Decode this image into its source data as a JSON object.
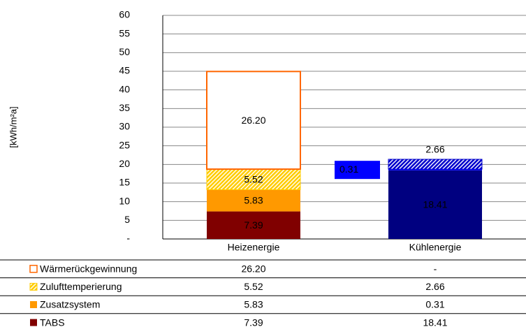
{
  "chart_data": {
    "type": "stacked_bar",
    "y_label": "[kWh/m²a]",
    "categories": [
      "Heizenergie",
      "Kühlenergie"
    ],
    "series": [
      {
        "name": "Wärmerückgewinnung",
        "style": "outline",
        "colors": [
          "#ff6600",
          "#0000cc"
        ],
        "values": [
          26.2,
          null
        ],
        "value_labels": [
          "26.20",
          "-"
        ]
      },
      {
        "name": "Zulufttemperierung",
        "style": "hatch",
        "colors": [
          "#ffcc00",
          "#0000cc"
        ],
        "values": [
          5.52,
          2.66
        ]
      },
      {
        "name": "Zusatzsystem",
        "style": "solid",
        "colors": [
          "#ff9900",
          "#0000ff"
        ],
        "values": [
          5.83,
          0.31
        ]
      },
      {
        "name": "TABS",
        "style": "solid",
        "colors": [
          "#800000",
          "#000080"
        ],
        "values": [
          7.39,
          18.41
        ]
      }
    ],
    "ylim": [
      0,
      60
    ],
    "yticks": [
      {
        "value": 0,
        "label": "-"
      },
      5,
      10,
      15,
      20,
      25,
      30,
      35,
      40,
      45,
      50,
      55,
      60
    ],
    "grid": true
  }
}
